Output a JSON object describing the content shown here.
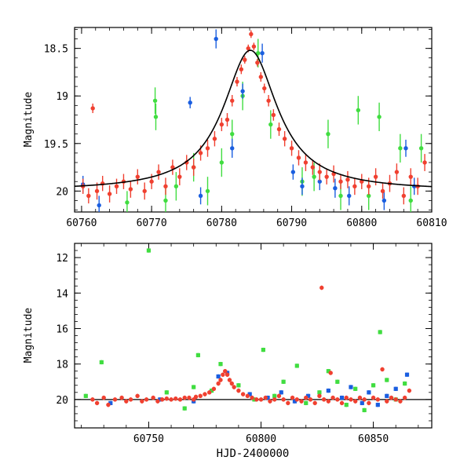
{
  "chart_data": [
    {
      "type": "scatter",
      "title": "",
      "xlabel": "",
      "ylabel": "Magnitude",
      "xlim": [
        60759,
        60810
      ],
      "ylim": [
        20.22,
        18.28
      ],
      "y_inverted": true,
      "xticks": [
        60760,
        60770,
        60780,
        60790,
        60800,
        60810
      ],
      "xtick_labels": [
        "60760",
        "60770",
        "60780",
        "60790",
        "60800",
        "60810"
      ],
      "yticks": [
        18.5,
        19,
        19.5,
        20
      ],
      "ytick_labels": [
        "18.5",
        "19",
        "19.5",
        "20"
      ],
      "grid": false,
      "legend": "none",
      "series": [
        {
          "color": "#f04030",
          "marker": "circle",
          "points": [
            [
              60760.2,
              19.95,
              0.08
            ],
            [
              60761.0,
              20.05,
              0.08
            ],
            [
              60761.6,
              19.13,
              0.05
            ],
            [
              60762.2,
              20.0,
              0.09
            ],
            [
              60763.0,
              19.92,
              0.08
            ],
            [
              60764.0,
              20.03,
              0.09
            ],
            [
              60765.0,
              19.95,
              0.08
            ],
            [
              60766.0,
              19.9,
              0.08
            ],
            [
              60767.0,
              19.98,
              0.09
            ],
            [
              60768.0,
              19.85,
              0.08
            ],
            [
              60769.0,
              20.0,
              0.09
            ],
            [
              60770.0,
              19.9,
              0.08
            ],
            [
              60771.0,
              19.8,
              0.08
            ],
            [
              60772.0,
              19.95,
              0.09
            ],
            [
              60773.0,
              19.75,
              0.08
            ],
            [
              60774.0,
              19.85,
              0.09
            ],
            [
              60775.0,
              19.7,
              0.08
            ],
            [
              60776.0,
              19.75,
              0.09
            ],
            [
              60777.0,
              19.6,
              0.08
            ],
            [
              60778.0,
              19.55,
              0.09
            ],
            [
              60779.0,
              19.45,
              0.08
            ],
            [
              60780.0,
              19.3,
              0.07
            ],
            [
              60780.8,
              19.25,
              0.07
            ],
            [
              60781.5,
              19.05,
              0.06
            ],
            [
              60782.2,
              18.85,
              0.05
            ],
            [
              60782.8,
              18.72,
              0.05
            ],
            [
              60783.3,
              18.62,
              0.04
            ],
            [
              60783.8,
              18.5,
              0.04
            ],
            [
              60784.2,
              18.35,
              0.04
            ],
            [
              60784.6,
              18.48,
              0.04
            ],
            [
              60785.1,
              18.65,
              0.04
            ],
            [
              60785.6,
              18.8,
              0.05
            ],
            [
              60786.1,
              18.92,
              0.05
            ],
            [
              60786.7,
              19.05,
              0.06
            ],
            [
              60787.4,
              19.2,
              0.06
            ],
            [
              60788.2,
              19.35,
              0.07
            ],
            [
              60789.0,
              19.45,
              0.08
            ],
            [
              60790.0,
              19.55,
              0.08
            ],
            [
              60791.0,
              19.65,
              0.08
            ],
            [
              60792.0,
              19.7,
              0.09
            ],
            [
              60793.0,
              19.75,
              0.08
            ],
            [
              60794.0,
              19.8,
              0.09
            ],
            [
              60795.0,
              19.85,
              0.08
            ],
            [
              60796.0,
              19.82,
              0.09
            ],
            [
              60797.0,
              19.9,
              0.08
            ],
            [
              60798.0,
              19.88,
              0.09
            ],
            [
              60799.0,
              19.95,
              0.09
            ],
            [
              60800.0,
              19.9,
              0.08
            ],
            [
              60801.0,
              19.95,
              0.09
            ],
            [
              60802.0,
              19.85,
              0.09
            ],
            [
              60803.0,
              20.0,
              0.08
            ],
            [
              60804.0,
              19.92,
              0.09
            ],
            [
              60805.0,
              19.8,
              0.09
            ],
            [
              60806.0,
              20.05,
              0.09
            ],
            [
              60807.0,
              19.85,
              0.09
            ],
            [
              60808.0,
              19.95,
              0.09
            ],
            [
              60809.0,
              19.7,
              0.09
            ]
          ]
        },
        {
          "color": "#1a5ee0",
          "marker": "circle",
          "points": [
            [
              60760.2,
              19.93,
              0.09
            ],
            [
              60762.5,
              20.15,
              0.1
            ],
            [
              60775.5,
              19.07,
              0.06
            ],
            [
              60777.0,
              20.05,
              0.09
            ],
            [
              60779.2,
              18.4,
              0.1
            ],
            [
              60781.5,
              19.55,
              0.1
            ],
            [
              60783.0,
              18.95,
              0.08
            ],
            [
              60785.8,
              18.55,
              0.1
            ],
            [
              60790.2,
              19.8,
              0.08
            ],
            [
              60791.5,
              19.95,
              0.09
            ],
            [
              60794.0,
              19.9,
              0.09
            ],
            [
              60796.2,
              19.97,
              0.1
            ],
            [
              60798.2,
              20.05,
              0.1
            ],
            [
              60803.2,
              20.1,
              0.1
            ],
            [
              60806.3,
              19.55,
              0.09
            ],
            [
              60807.5,
              19.95,
              0.09
            ]
          ]
        },
        {
          "color": "#40dd40",
          "marker": "circle",
          "points": [
            [
              60766.5,
              20.12,
              0.12
            ],
            [
              60770.5,
              19.05,
              0.14
            ],
            [
              60770.6,
              19.22,
              0.14
            ],
            [
              60772.0,
              20.1,
              0.15
            ],
            [
              60773.5,
              19.95,
              0.15
            ],
            [
              60776.0,
              19.75,
              0.15
            ],
            [
              60778.0,
              20.0,
              0.15
            ],
            [
              60780.0,
              19.7,
              0.15
            ],
            [
              60781.5,
              19.4,
              0.15
            ],
            [
              60783.0,
              19.0,
              0.15
            ],
            [
              60785.2,
              18.55,
              0.15
            ],
            [
              60787.0,
              19.3,
              0.15
            ],
            [
              60791.5,
              19.9,
              0.15
            ],
            [
              60793.2,
              19.85,
              0.15
            ],
            [
              60795.2,
              19.4,
              0.15
            ],
            [
              60797.0,
              20.05,
              0.15
            ],
            [
              60799.5,
              19.15,
              0.15
            ],
            [
              60801.0,
              20.05,
              0.15
            ],
            [
              60802.5,
              19.22,
              0.15
            ],
            [
              60805.5,
              19.55,
              0.15
            ],
            [
              60807.0,
              20.1,
              0.15
            ],
            [
              60808.5,
              19.55,
              0.15
            ]
          ]
        }
      ],
      "model_curve": {
        "color": "#000000",
        "baseline": 20.0,
        "peak_mag": 18.52,
        "t0": 60784.1,
        "tE": 4.7,
        "label": ""
      }
    },
    {
      "type": "scatter",
      "title": "",
      "xlabel": "HJD-2400000",
      "ylabel": "Magnitude",
      "xlim": [
        60717,
        60876
      ],
      "ylim": [
        21.6,
        11.2
      ],
      "y_inverted": true,
      "xticks": [
        60750,
        60800,
        60850
      ],
      "xtick_labels": [
        "60750",
        "60800",
        "60850"
      ],
      "yticks": [
        12,
        14,
        16,
        18,
        20
      ],
      "ytick_labels": [
        "12",
        "14",
        "16",
        "18",
        "20"
      ],
      "grid": false,
      "legend": "none",
      "hline": 20.0,
      "series": [
        {
          "color": "#f04030",
          "marker": "circle",
          "points": [
            [
              60725,
              20.0
            ],
            [
              60727,
              20.2
            ],
            [
              60730,
              19.9
            ],
            [
              60732,
              20.3
            ],
            [
              60735,
              20.0
            ],
            [
              60738,
              19.9
            ],
            [
              60740,
              20.1
            ],
            [
              60742,
              20.0
            ],
            [
              60745,
              19.8
            ],
            [
              60747,
              20.1
            ],
            [
              60749,
              20.0
            ],
            [
              60752,
              19.9
            ],
            [
              60754,
              20.1
            ],
            [
              60756,
              20.0
            ],
            [
              60758,
              19.95
            ],
            [
              60760,
              20.0
            ],
            [
              60762,
              19.95
            ],
            [
              60764,
              20.0
            ],
            [
              60766,
              19.9
            ],
            [
              60768,
              19.9
            ],
            [
              60770,
              20.0
            ],
            [
              60771,
              19.85
            ],
            [
              60773,
              19.8
            ],
            [
              60775,
              19.7
            ],
            [
              60777,
              19.6
            ],
            [
              60779,
              19.4
            ],
            [
              60781,
              19.1
            ],
            [
              60782,
              18.9
            ],
            [
              60783,
              18.6
            ],
            [
              60784,
              18.4
            ],
            [
              60785,
              18.6
            ],
            [
              60786,
              18.9
            ],
            [
              60787,
              19.1
            ],
            [
              60788,
              19.3
            ],
            [
              60790,
              19.5
            ],
            [
              60792,
              19.7
            ],
            [
              60794,
              19.8
            ],
            [
              60796,
              19.9
            ],
            [
              60798,
              20.0
            ],
            [
              60800,
              20.0
            ],
            [
              60802,
              19.9
            ],
            [
              60804,
              20.1
            ],
            [
              60806,
              20.0
            ],
            [
              60808,
              19.8
            ],
            [
              60810,
              20.0
            ],
            [
              60812,
              20.2
            ],
            [
              60814,
              19.9
            ],
            [
              60816,
              20.0
            ],
            [
              60818,
              20.1
            ],
            [
              60820,
              19.9
            ],
            [
              60822,
              20.0
            ],
            [
              60824,
              20.2
            ],
            [
              60826,
              19.8
            ],
            [
              60827,
              13.7
            ],
            [
              60828,
              20.0
            ],
            [
              60830,
              20.1
            ],
            [
              60831,
              18.5
            ],
            [
              60832,
              19.9
            ],
            [
              60834,
              20.0
            ],
            [
              60836,
              20.2
            ],
            [
              60838,
              19.9
            ],
            [
              60840,
              20.0
            ],
            [
              60842,
              20.1
            ],
            [
              60844,
              19.9
            ],
            [
              60846,
              20.0
            ],
            [
              60848,
              20.2
            ],
            [
              60850,
              19.9
            ],
            [
              60852,
              20.0
            ],
            [
              60854,
              18.3
            ],
            [
              60856,
              20.1
            ],
            [
              60858,
              19.9
            ],
            [
              60860,
              20.0
            ],
            [
              60862,
              20.1
            ],
            [
              60864,
              19.9
            ],
            [
              60866,
              19.5
            ]
          ]
        },
        {
          "color": "#1a5ee0",
          "marker": "square",
          "points": [
            [
              60733,
              20.2
            ],
            [
              60755,
              20.0
            ],
            [
              60770,
              20.1
            ],
            [
              60781,
              18.7
            ],
            [
              60785,
              18.5
            ],
            [
              60795,
              19.7
            ],
            [
              60803,
              19.9
            ],
            [
              60809,
              19.6
            ],
            [
              60815,
              20.1
            ],
            [
              60821,
              19.8
            ],
            [
              60830,
              19.5
            ],
            [
              60836,
              19.9
            ],
            [
              60840,
              19.3
            ],
            [
              60845,
              20.2
            ],
            [
              60848,
              19.6
            ],
            [
              60852,
              20.3
            ],
            [
              60856,
              19.8
            ],
            [
              60860,
              19.4
            ],
            [
              60865,
              18.6
            ]
          ]
        },
        {
          "color": "#40dd40",
          "marker": "square",
          "points": [
            [
              60722,
              19.8
            ],
            [
              60729,
              17.9
            ],
            [
              60750,
              11.6
            ],
            [
              60758,
              19.6
            ],
            [
              60766,
              20.5
            ],
            [
              60770,
              19.3
            ],
            [
              60772,
              17.5
            ],
            [
              60778,
              19.5
            ],
            [
              60782,
              18.0
            ],
            [
              60790,
              19.2
            ],
            [
              60797,
              20.0
            ],
            [
              60801,
              17.2
            ],
            [
              60806,
              19.8
            ],
            [
              60810,
              19.0
            ],
            [
              60816,
              18.1
            ],
            [
              60820,
              20.2
            ],
            [
              60826,
              19.6
            ],
            [
              60830,
              18.4
            ],
            [
              60834,
              19.0
            ],
            [
              60838,
              20.3
            ],
            [
              60842,
              19.4
            ],
            [
              60846,
              20.6
            ],
            [
              60850,
              19.2
            ],
            [
              60853,
              16.2
            ],
            [
              60856,
              18.9
            ],
            [
              60860,
              20.0
            ],
            [
              60864,
              19.1
            ]
          ]
        }
      ]
    }
  ]
}
